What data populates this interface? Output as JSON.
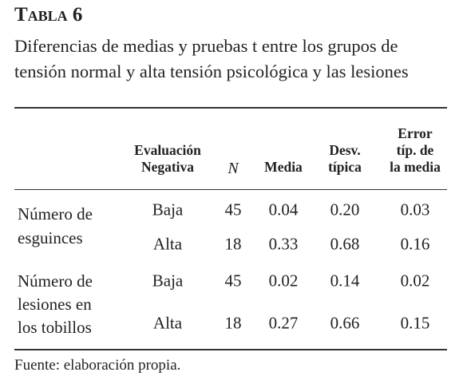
{
  "title": "Tabla 6",
  "caption": [
    "Diferencias de medias y pruebas t entre los grupos de",
    "tensión normal y alta tensión psicológica y las lesiones"
  ],
  "table": {
    "headers": [
      [
        "Evaluación",
        "Negativa"
      ],
      [
        "N"
      ],
      [
        "Media"
      ],
      [
        "Desv.",
        "típica"
      ],
      [
        "Error",
        "típ. de",
        "la media"
      ]
    ],
    "groups": [
      {
        "label": [
          "Número de",
          "esguinces"
        ],
        "rows": [
          [
            "Baja",
            "45",
            "0.04",
            "0.20",
            "0.03"
          ],
          [
            "Alta",
            "18",
            "0.33",
            "0.68",
            "0.16"
          ]
        ]
      },
      {
        "label": [
          "Número de",
          "lesiones en",
          "los tobillos"
        ],
        "rows": [
          [
            "Baja",
            "45",
            "0.02",
            "0.14",
            "0.02"
          ],
          [
            "Alta",
            "18",
            "0.27",
            "0.66",
            "0.15"
          ]
        ]
      }
    ]
  },
  "footer": "Fuente: elaboración propia."
}
